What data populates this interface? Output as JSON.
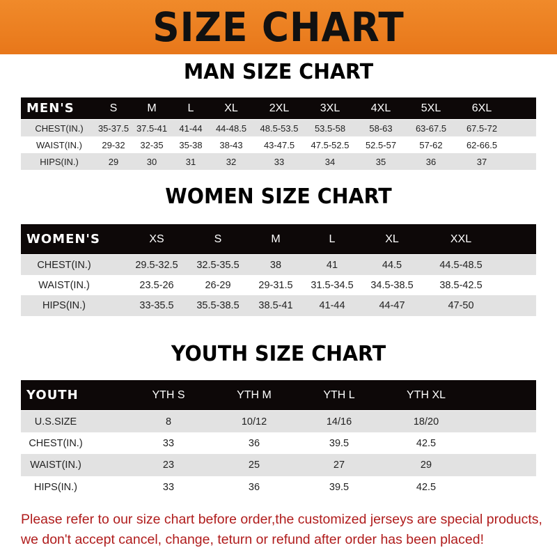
{
  "title": "SIZE CHART",
  "colors": {
    "banner": "#ec7f22",
    "header_row": "#0d0808",
    "alt_row": "#e2e2e2",
    "note": "#b01c1c"
  },
  "men": {
    "title": "MAN SIZE CHART",
    "header": [
      "MEN'S",
      "S",
      "M",
      "L",
      "XL",
      "2XL",
      "3XL",
      "4XL",
      "5XL",
      "6XL"
    ],
    "rows": [
      [
        "CHEST(IN.)",
        "35-37.5",
        "37.5-41",
        "41-44",
        "44-48.5",
        "48.5-53.5",
        "53.5-58",
        "58-63",
        "63-67.5",
        "67.5-72"
      ],
      [
        "WAIST(IN.)",
        "29-32",
        "32-35",
        "35-38",
        "38-43",
        "43-47.5",
        "47.5-52.5",
        "52.5-57",
        "57-62",
        "62-66.5"
      ],
      [
        "HIPS(IN.)",
        "29",
        "30",
        "31",
        "32",
        "33",
        "34",
        "35",
        "36",
        "37"
      ]
    ]
  },
  "women": {
    "title": "WOMEN SIZE CHART",
    "header": [
      "WOMEN'S",
      "XS",
      "S",
      "M",
      "L",
      "XL",
      "XXL"
    ],
    "rows": [
      [
        "CHEST(IN.)",
        "29.5-32.5",
        "32.5-35.5",
        "38",
        "41",
        "44.5",
        "44.5-48.5"
      ],
      [
        "WAIST(IN.)",
        "23.5-26",
        "26-29",
        "29-31.5",
        "31.5-34.5",
        "34.5-38.5",
        "38.5-42.5"
      ],
      [
        "HIPS(IN.)",
        "33-35.5",
        "35.5-38.5",
        "38.5-41",
        "41-44",
        "44-47",
        "47-50"
      ]
    ]
  },
  "youth": {
    "title": "YOUTH SIZE CHART",
    "header": [
      "YOUTH",
      "YTH S",
      "YTH M",
      "YTH L",
      "YTH XL"
    ],
    "rows": [
      [
        "U.S.SIZE",
        "8",
        "10/12",
        "14/16",
        "18/20"
      ],
      [
        "CHEST(IN.)",
        "33",
        "36",
        "39.5",
        "42.5"
      ],
      [
        "WAIST(IN.)",
        "23",
        "25",
        "27",
        "29"
      ],
      [
        "HIPS(IN.)",
        "33",
        "36",
        "39.5",
        "42.5"
      ]
    ]
  },
  "note": [
    "Please refer to our size chart before order,the customized jerseys are special products,",
    "we don't accept cancel, change, teturn or refund after order has been placed!"
  ]
}
